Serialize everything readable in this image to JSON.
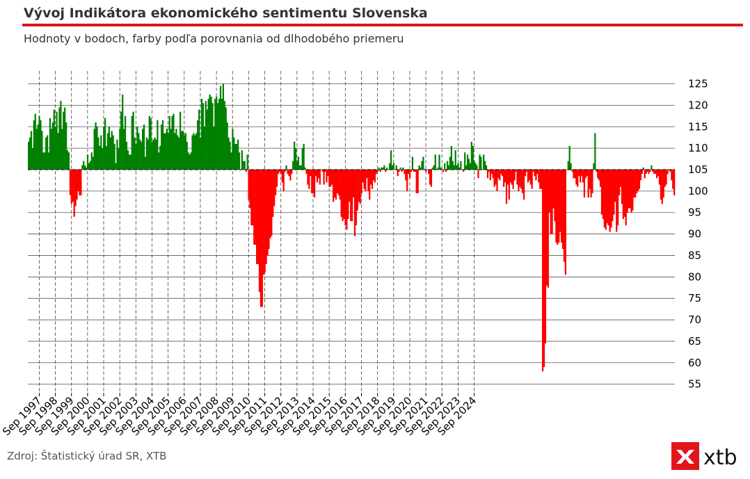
{
  "title": "Vývoj Indikátora ekonomického sentimentu Slovenska",
  "subtitle": "Hodnoty v bodoch, farby podľa porovnania od dlhodobého priemeru",
  "source": "Zdroj: Štatistický úrad SR, XTB",
  "logo_text": "xtb",
  "colors": {
    "above": "#008000",
    "below": "#ff0000",
    "accent": "#d7191c",
    "logo": "#e3151a"
  },
  "chart_data": {
    "type": "bar",
    "baseline": 105,
    "ylim": [
      53,
      128
    ],
    "yticks": [
      55,
      60,
      65,
      70,
      75,
      80,
      85,
      90,
      95,
      100,
      105,
      110,
      115,
      120,
      125
    ],
    "xlabels": [
      "Sep 1997",
      "Sep 1998",
      "Sep 1999",
      "Sep 2000",
      "Sep 2001",
      "Sep 2002",
      "Sep 2003",
      "Sep 2004",
      "Sep 2005",
      "Sep 2006",
      "Sep 2007",
      "Sep 2008",
      "Sep 2009",
      "Sep 2010",
      "Sep 2011",
      "Sep 2012",
      "Sep 2013",
      "Sep 2014",
      "Sep 2015",
      "Sep 2016",
      "Sep 2017",
      "Sep 2018",
      "Sep 2019",
      "Sep 2020",
      "Sep 2021",
      "Sep 2022",
      "Sep 2023",
      "Sep 2024"
    ],
    "start": "Jan 1997",
    "end": "Dec 2024",
    "grid": true,
    "values": [
      111.5,
      112.5,
      114.0,
      110.0,
      116.5,
      118.0,
      114.5,
      115.5,
      117.5,
      116.5,
      114.0,
      109.0,
      109.0,
      112.5,
      113.0,
      109.0,
      117.0,
      114.5,
      116.0,
      119.0,
      115.0,
      118.5,
      113.5,
      119.5,
      121.0,
      114.5,
      118.5,
      119.5,
      116.0,
      109.5,
      109.0,
      99.0,
      97.0,
      97.5,
      94.0,
      96.5,
      98.0,
      100.0,
      99.0,
      99.0,
      106.0,
      107.0,
      106.0,
      105.5,
      108.5,
      106.5,
      107.0,
      109.0,
      108.0,
      114.5,
      116.0,
      115.0,
      112.5,
      110.5,
      113.0,
      110.0,
      115.0,
      117.0,
      110.5,
      113.5,
      115.0,
      112.5,
      114.0,
      113.0,
      111.0,
      106.5,
      112.0,
      110.0,
      114.5,
      118.5,
      122.5,
      114.5,
      117.5,
      111.5,
      109.5,
      108.5,
      108.5,
      117.5,
      118.5,
      112.5,
      111.0,
      115.0,
      113.5,
      112.0,
      111.5,
      114.5,
      115.5,
      108.0,
      112.5,
      112.0,
      117.5,
      117.0,
      111.5,
      112.0,
      112.5,
      112.0,
      116.5,
      109.0,
      110.5,
      115.5,
      116.5,
      113.5,
      113.5,
      114.5,
      113.5,
      117.5,
      114.5,
      117.5,
      118.0,
      113.5,
      114.5,
      113.0,
      112.5,
      118.5,
      114.0,
      114.0,
      113.0,
      113.5,
      111.5,
      109.0,
      108.5,
      109.0,
      113.0,
      113.5,
      113.0,
      113.5,
      116.5,
      119.0,
      112.5,
      121.5,
      120.5,
      115.0,
      121.0,
      119.0,
      121.5,
      122.5,
      122.0,
      120.5,
      115.0,
      121.5,
      122.0,
      120.5,
      121.5,
      124.5,
      121.5,
      125.0,
      121.0,
      119.5,
      116.0,
      112.5,
      111.5,
      109.0,
      114.5,
      112.5,
      111.0,
      111.0,
      112.0,
      109.0,
      105.0,
      109.5,
      107.0,
      107.0,
      104.5,
      108.5,
      98.0,
      96.0,
      92.0,
      92.0,
      87.5,
      87.5,
      83.0,
      83.0,
      76.5,
      73.0,
      73.0,
      80.5,
      81.0,
      83.0,
      85.0,
      86.5,
      89.0,
      89.5,
      94.0,
      96.5,
      99.0,
      101.0,
      104.0,
      104.5,
      104.0,
      102.0,
      100.0,
      104.5,
      106.0,
      104.0,
      103.5,
      102.5,
      104.0,
      107.0,
      111.5,
      110.0,
      107.0,
      108.0,
      106.0,
      106.0,
      110.0,
      111.0,
      105.5,
      104.0,
      101.5,
      100.5,
      103.5,
      99.5,
      99.5,
      98.5,
      103.5,
      102.0,
      103.0,
      101.5,
      105.0,
      104.5,
      101.5,
      104.5,
      102.0,
      103.5,
      101.0,
      101.0,
      101.5,
      97.5,
      98.5,
      98.0,
      99.5,
      99.0,
      98.0,
      94.0,
      93.0,
      93.5,
      92.0,
      91.0,
      93.5,
      97.5,
      93.0,
      93.0,
      98.5,
      89.5,
      92.0,
      95.5,
      97.5,
      97.0,
      99.5,
      102.0,
      100.5,
      100.0,
      103.0,
      100.0,
      98.0,
      101.5,
      100.5,
      102.5,
      102.0,
      104.0,
      104.5,
      105.5,
      104.5,
      105.5,
      105.5,
      106.0,
      104.5,
      105.5,
      105.0,
      106.5,
      109.5,
      106.0,
      106.5,
      105.0,
      106.0,
      103.5,
      104.5,
      105.5,
      104.5,
      105.5,
      104.0,
      102.5,
      100.0,
      104.0,
      103.0,
      104.5,
      108.0,
      104.5,
      104.5,
      99.5,
      99.5,
      106.0,
      105.5,
      107.0,
      108.0,
      105.0,
      104.5,
      105.0,
      104.0,
      101.5,
      101.0,
      105.5,
      106.0,
      108.5,
      105.0,
      105.5,
      108.5,
      105.5,
      105.0,
      104.5,
      106.5,
      104.5,
      107.0,
      106.0,
      108.0,
      110.5,
      107.0,
      106.0,
      109.5,
      106.0,
      106.5,
      105.5,
      107.0,
      105.0,
      104.5,
      109.0,
      106.0,
      108.5,
      107.5,
      106.5,
      111.5,
      110.5,
      107.0,
      106.5,
      106.0,
      103.0,
      108.5,
      108.0,
      105.0,
      108.5,
      107.0,
      106.0,
      103.0,
      104.5,
      102.5,
      104.0,
      103.0,
      101.0,
      101.5,
      100.0,
      103.0,
      102.5,
      104.0,
      103.5,
      101.0,
      102.0,
      97.0,
      101.5,
      98.0,
      102.0,
      101.5,
      100.5,
      102.5,
      104.5,
      101.5,
      100.0,
      101.0,
      100.5,
      99.5,
      98.0,
      103.5,
      104.5,
      102.0,
      102.5,
      101.5,
      100.5,
      104.5,
      103.5,
      102.5,
      104.0,
      102.0,
      100.5,
      100.5,
      58.0,
      59.0,
      64.5,
      78.0,
      77.5,
      95.0,
      90.0,
      90.0,
      96.0,
      93.0,
      88.0,
      87.5,
      88.0,
      90.5,
      88.0,
      86.5,
      83.5,
      80.5,
      105.0,
      107.0,
      110.5,
      106.5,
      104.5,
      103.0,
      103.0,
      101.5,
      101.0,
      103.5,
      102.0,
      103.5,
      102.0,
      98.5,
      103.0,
      103.5,
      98.5,
      100.5,
      98.5,
      99.5,
      106.5,
      113.5,
      104.5,
      103.0,
      102.5,
      101.0,
      94.5,
      93.5,
      91.5,
      91.0,
      92.5,
      92.0,
      90.5,
      91.5,
      93.0,
      94.5,
      97.5,
      90.5,
      92.0,
      99.0,
      101.0,
      97.0,
      93.5,
      94.0,
      92.0,
      95.0,
      96.0,
      96.0,
      95.0,
      95.5,
      98.5,
      98.5,
      99.5,
      100.0,
      100.5,
      102.5,
      104.0,
      105.5,
      103.0,
      104.0,
      104.5,
      104.0,
      104.5,
      106.0,
      104.5,
      104.0,
      104.0,
      103.0,
      103.5,
      101.5,
      98.0,
      97.0,
      98.5,
      101.0,
      101.5,
      104.0,
      105.0,
      104.5,
      102.5,
      100.5,
      99.0
    ]
  }
}
